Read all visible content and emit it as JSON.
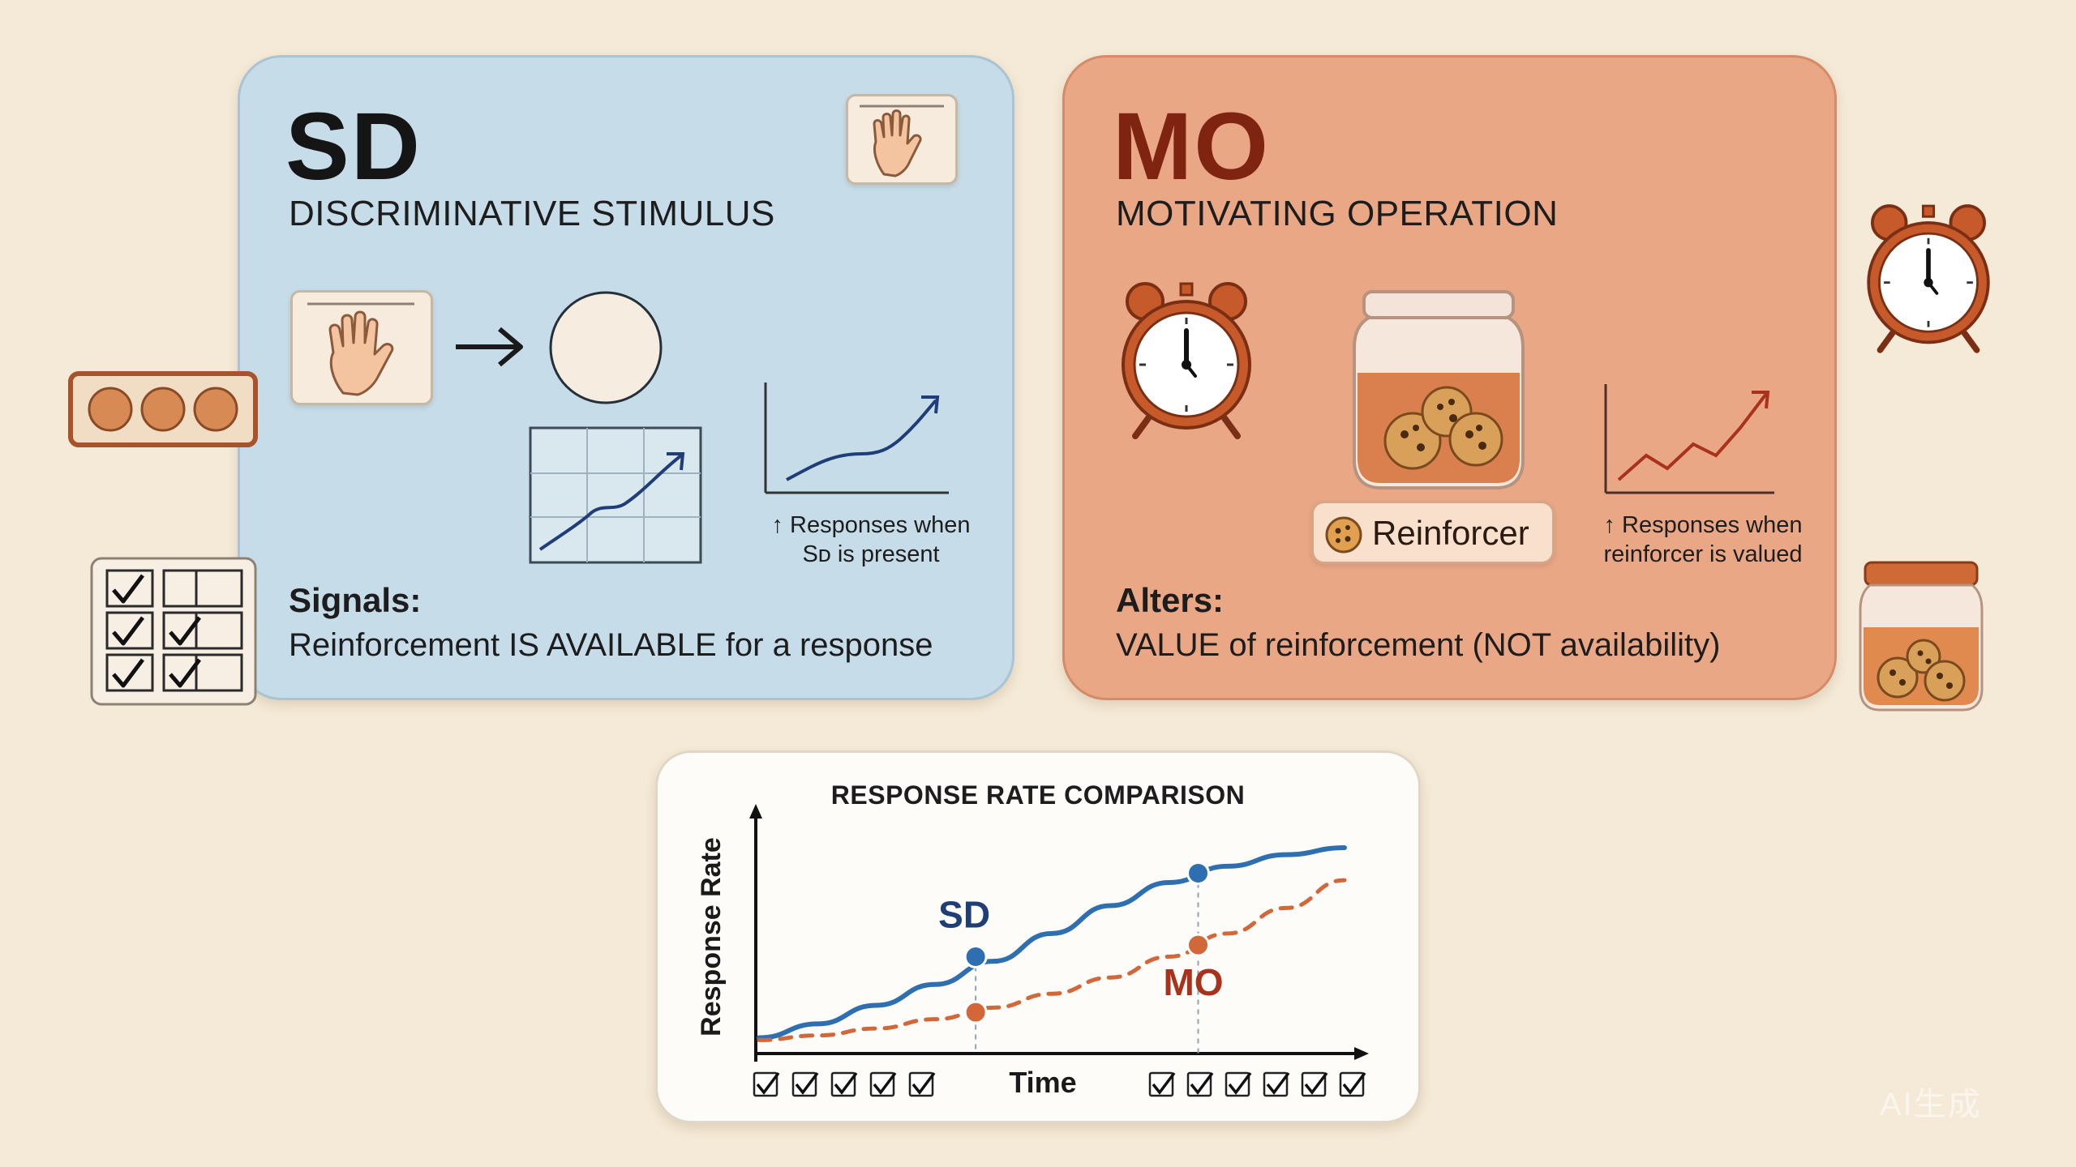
{
  "sd_card": {
    "title": "SD",
    "subtitle": "DISCRIMINATIVE STIMULUS",
    "caption_line1": "↑ Responses when",
    "caption_line2": "Sᴅ is present",
    "label": "Signals:",
    "description": "Reinforcement IS AVAILABLE for a response"
  },
  "mo_card": {
    "title": "MO",
    "subtitle": "MOTIVATING OPERATION",
    "reinforcer_label": "Reinforcer",
    "caption_line1": "↑ Responses when",
    "caption_line2": "reinforcer is valued",
    "label": "Alters:",
    "description": "VALUE of reinforcement (NOT availability)"
  },
  "comparison_chart": {
    "title": "RESPONSE RATE COMPARISON"
  },
  "watermark": "AI生成",
  "colors": {
    "sd_blue": "#2d6fb0",
    "mo_orange": "#d2683a",
    "mo_title": "#7f2411",
    "sd_card_bg": "#c6dce8",
    "mo_card_bg": "#e9a786"
  },
  "chart_data": {
    "type": "line",
    "title": "RESPONSE RATE COMPARISON",
    "xlabel": "Time",
    "ylabel": "Response Rate",
    "xlim": [
      0,
      10
    ],
    "ylim": [
      0,
      10
    ],
    "grid": false,
    "series": [
      {
        "name": "SD",
        "style": "solid",
        "color": "#2d6fb0",
        "x": [
          0,
          1,
          2,
          3,
          4,
          5,
          6,
          7,
          8,
          9,
          10
        ],
        "y": [
          0.4,
          1.0,
          1.8,
          2.7,
          3.7,
          4.9,
          6.1,
          7.1,
          7.8,
          8.3,
          8.6
        ],
        "markers": [
          {
            "x": 3.7,
            "y": 3.9
          },
          {
            "x": 7.5,
            "y": 7.5
          }
        ]
      },
      {
        "name": "MO",
        "style": "dashed",
        "color": "#d2683a",
        "x": [
          0,
          1,
          2,
          3,
          4,
          5,
          6,
          7,
          8,
          9,
          10
        ],
        "y": [
          0.3,
          0.5,
          0.8,
          1.2,
          1.7,
          2.3,
          3.0,
          3.9,
          4.9,
          6.0,
          7.2
        ],
        "markers": [
          {
            "x": 3.7,
            "y": 1.5
          },
          {
            "x": 7.5,
            "y": 4.4
          }
        ]
      }
    ],
    "annotations": [
      {
        "text": "SD",
        "series": "SD"
      },
      {
        "text": "MO",
        "series": "MO"
      }
    ],
    "checkbox_rows": {
      "left": 5,
      "right": 6
    }
  }
}
